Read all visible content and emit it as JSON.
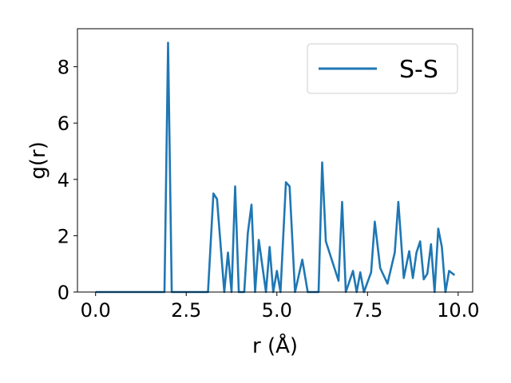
{
  "chart_data": {
    "type": "line",
    "title": "",
    "xlabel": "r (Å)",
    "ylabel": "g(r)",
    "xlim": [
      -0.5,
      10.4
    ],
    "ylim": [
      0,
      9.35
    ],
    "xticks": [
      0.0,
      2.5,
      5.0,
      7.5,
      10.0
    ],
    "xtick_labels": [
      "0.0",
      "2.5",
      "5.0",
      "7.5",
      "10.0"
    ],
    "yticks": [
      0,
      2,
      4,
      6,
      8
    ],
    "ytick_labels": [
      "0",
      "2",
      "4",
      "6",
      "8"
    ],
    "grid": false,
    "legend_position": "top-right",
    "series": [
      {
        "name": "S-S",
        "color": "#1f77b4",
        "x": [
          0.0,
          1.9,
          2.0,
          2.1,
          3.1,
          3.25,
          3.35,
          3.55,
          3.65,
          3.75,
          3.85,
          3.95,
          4.1,
          4.2,
          4.3,
          4.4,
          4.5,
          4.7,
          4.8,
          4.9,
          5.0,
          5.1,
          5.25,
          5.35,
          5.5,
          5.7,
          5.85,
          6.15,
          6.25,
          6.35,
          6.7,
          6.8,
          6.9,
          7.1,
          7.2,
          7.3,
          7.4,
          7.6,
          7.7,
          7.85,
          8.05,
          8.25,
          8.35,
          8.5,
          8.65,
          8.75,
          8.85,
          8.95,
          9.05,
          9.15,
          9.25,
          9.35,
          9.45,
          9.55,
          9.65,
          9.75,
          9.9
        ],
        "y": [
          0.0,
          0.0,
          8.85,
          0.0,
          0.0,
          3.5,
          3.3,
          0.0,
          1.4,
          0.0,
          3.75,
          0.0,
          0.0,
          2.1,
          3.1,
          0.0,
          1.85,
          0.0,
          1.6,
          0.0,
          0.75,
          0.0,
          3.9,
          3.75,
          0.0,
          1.15,
          0.0,
          0.0,
          4.6,
          1.8,
          0.4,
          3.2,
          0.0,
          0.75,
          0.0,
          0.7,
          0.0,
          0.7,
          2.5,
          0.85,
          0.3,
          1.4,
          3.2,
          0.5,
          1.45,
          0.5,
          1.4,
          1.8,
          0.45,
          0.65,
          1.7,
          0.0,
          2.25,
          1.6,
          0.0,
          0.75,
          0.6
        ]
      }
    ]
  }
}
